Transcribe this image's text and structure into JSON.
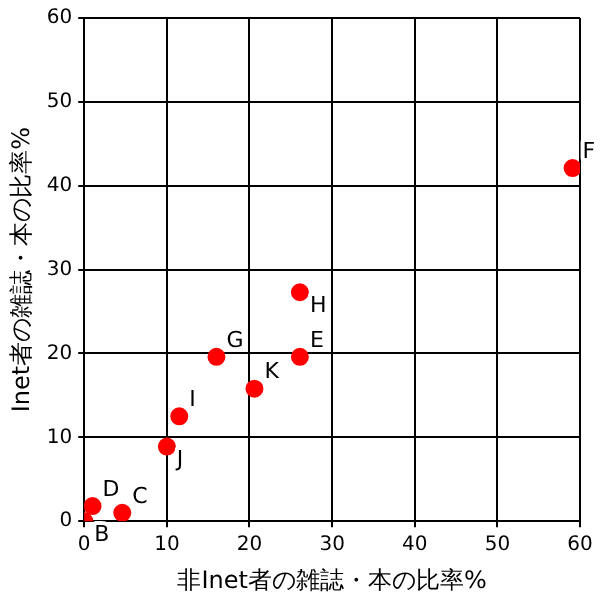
{
  "chart_data": {
    "type": "scatter",
    "xlabel": "非Inet者の雑誌・本の比率%",
    "ylabel": "Inet者の雑誌・本の比率%",
    "x": [
      0,
      4.6,
      1.0,
      26.1,
      59.1,
      16.0,
      26.1,
      11.5,
      10.0,
      20.6
    ],
    "series": [
      {
        "color": "#ff0000",
        "values": [
          0,
          1.0,
          1.8,
          19.6,
          42.1,
          19.6,
          27.3,
          12.5,
          8.9,
          15.8
        ]
      }
    ],
    "annotations": [
      {
        "text": "B",
        "x": 0,
        "y": 0
      },
      {
        "text": "C",
        "x": 4.6,
        "y": 1.0
      },
      {
        "text": "D",
        "x": 1.0,
        "y": 1.8
      },
      {
        "text": "E",
        "x": 26.1,
        "y": 19.6
      },
      {
        "text": "F",
        "x": 59.1,
        "y": 42.1
      },
      {
        "text": "G",
        "x": 16.0,
        "y": 19.6
      },
      {
        "text": "H",
        "x": 26.1,
        "y": 27.3
      },
      {
        "text": "I",
        "x": 11.5,
        "y": 12.5
      },
      {
        "text": "J",
        "x": 10.0,
        "y": 8.9
      },
      {
        "text": "K",
        "x": 20.6,
        "y": 15.8
      }
    ],
    "xlim": [
      0,
      60
    ],
    "ylim": [
      0,
      60
    ],
    "xticks": [
      0,
      10,
      20,
      30,
      40,
      50,
      60
    ],
    "yticks": [
      0,
      10,
      20,
      30,
      40,
      50,
      60
    ],
    "grid": true,
    "marker": "circle",
    "legend": false
  }
}
